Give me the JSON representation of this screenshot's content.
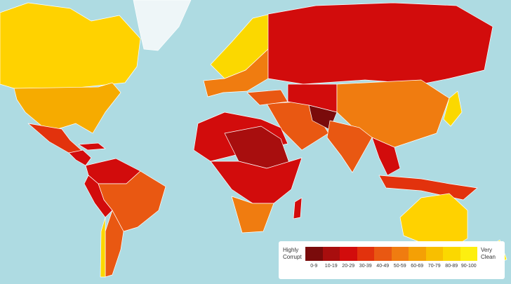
{
  "legend": {
    "left_label": "Highly Corrupt",
    "right_label": "Very Clean",
    "bins": [
      {
        "label": "0-9",
        "color": "#7a0b0b"
      },
      {
        "label": "10-19",
        "color": "#a80e0e"
      },
      {
        "label": "20-29",
        "color": "#d20c0c"
      },
      {
        "label": "30-39",
        "color": "#e2320d"
      },
      {
        "label": "40-49",
        "color": "#e95812"
      },
      {
        "label": "50-59",
        "color": "#f07c10"
      },
      {
        "label": "60-69",
        "color": "#f4a005"
      },
      {
        "label": "70-79",
        "color": "#f8bf00"
      },
      {
        "label": "80-89",
        "color": "#fbd800"
      },
      {
        "label": "90-100",
        "color": "#fdef10"
      }
    ]
  }
}
